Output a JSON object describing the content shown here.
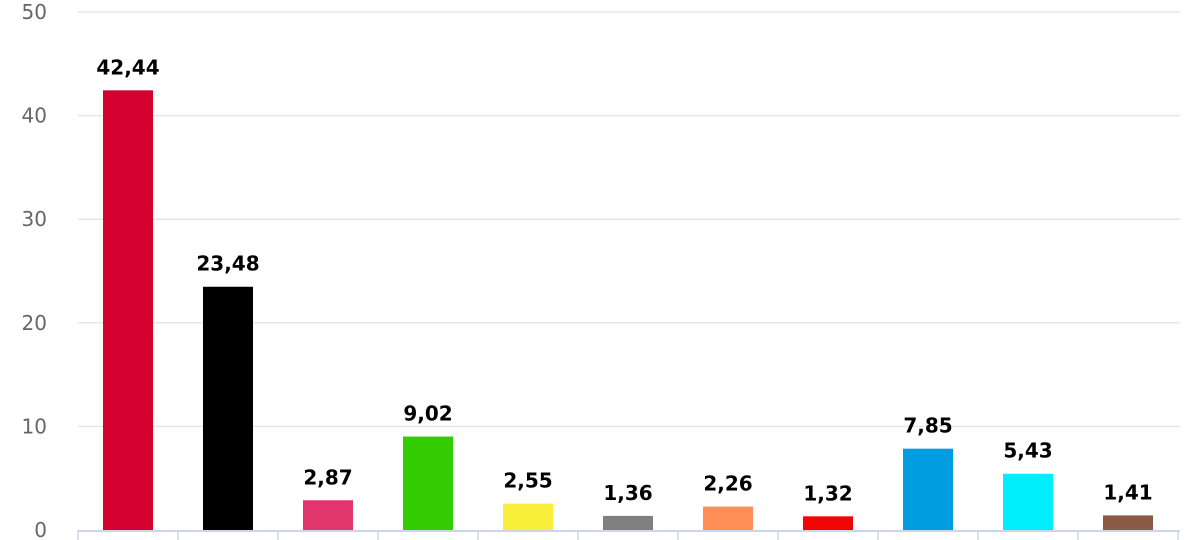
{
  "chart_data": {
    "type": "bar",
    "title": "",
    "xlabel": "",
    "ylabel": "",
    "categories": [
      "",
      "",
      "",
      "",
      "",
      "",
      "",
      "",
      "",
      "",
      ""
    ],
    "values": [
      42.44,
      23.48,
      2.87,
      9.02,
      2.55,
      1.36,
      2.26,
      1.32,
      7.85,
      5.43,
      1.41
    ],
    "value_labels": [
      "42,44",
      "23,48",
      "2,87",
      "9,02",
      "2,55",
      "1,36",
      "2,26",
      "1,32",
      "7,85",
      "5,43",
      "1,41"
    ],
    "colors": [
      "#d4002d",
      "#000000",
      "#e0356d",
      "#33cc00",
      "#f9ef3a",
      "#808080",
      "#ff8f57",
      "#f20505",
      "#009ee0",
      "#00eeff",
      "#8b5a44"
    ],
    "ylim": [
      0,
      50
    ],
    "yticks": [
      0,
      10,
      20,
      30,
      40,
      50
    ],
    "grid": true,
    "legend": "none"
  }
}
